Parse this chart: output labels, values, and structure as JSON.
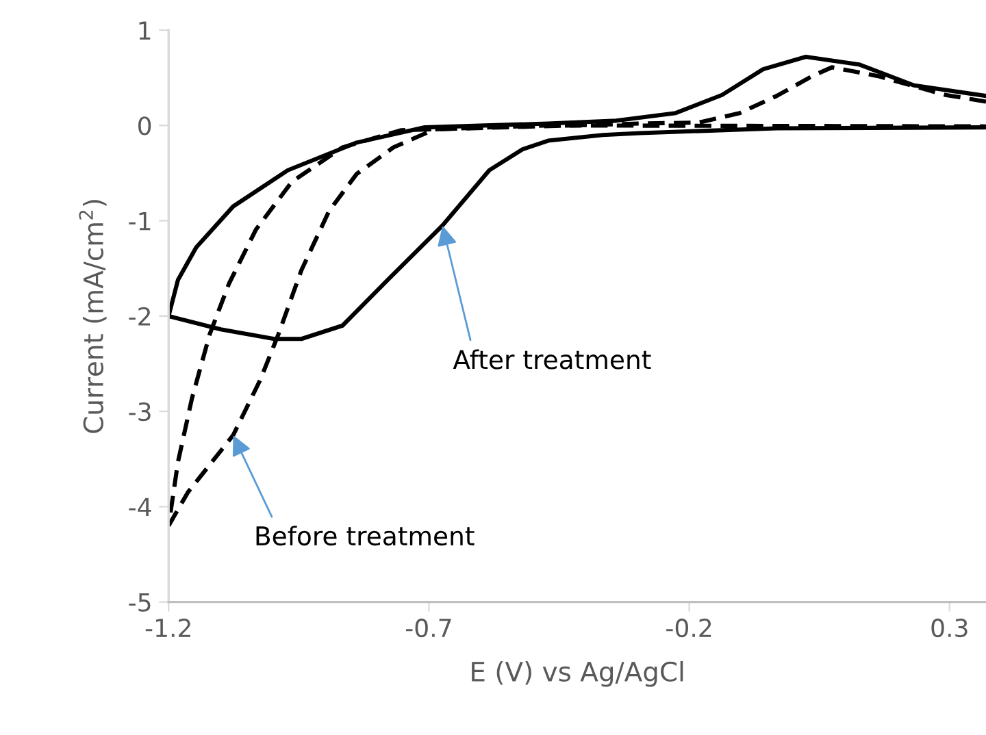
{
  "chart_data": {
    "type": "line",
    "xlabel": "E (V) vs Ag/AgCl",
    "ylabel": "Current (mA/cm$^{2}$)",
    "xlim": [
      -1.2,
      0.37
    ],
    "xticks": [
      -1.2,
      -0.7,
      -0.2,
      0.3
    ],
    "ylim": [
      -5,
      1
    ],
    "yticks": [
      -5,
      -4,
      -3,
      -2,
      -1,
      0,
      1
    ],
    "grid": false,
    "legend": false,
    "marker": "none",
    "series": [
      {
        "color": "#000000",
        "line_style": "solid",
        "x": [
          -1.2,
          -1.1,
          -0.997,
          -0.945,
          -0.866,
          -0.779,
          -0.674,
          -0.584,
          -0.52,
          -0.471,
          -0.366,
          -0.295,
          -0.032,
          0.37
        ],
        "values": [
          -2.0,
          -2.14,
          -2.24,
          -2.24,
          -2.1,
          -1.62,
          -1.05,
          -0.47,
          -0.25,
          -0.16,
          -0.1,
          -0.08,
          -0.03,
          -0.02
        ]
      },
      {
        "color": "#000000",
        "line_style": "solid",
        "x": [
          0.37,
          0.232,
          0.126,
          0.024,
          -0.058,
          -0.137,
          -0.226,
          -0.34,
          -0.471,
          -0.708,
          -0.839,
          -0.971,
          -1.076,
          -1.147,
          -1.182,
          -1.2
        ],
        "values": [
          0.31,
          0.42,
          0.64,
          0.72,
          0.59,
          0.32,
          0.13,
          0.05,
          0.02,
          -0.02,
          -0.18,
          -0.47,
          -0.85,
          -1.28,
          -1.62,
          -2.0
        ]
      },
      {
        "color": "#000000",
        "line_style": "dashed",
        "x": [
          -1.2,
          -1.163,
          -1.076,
          -1.024,
          -0.989,
          -0.945,
          -0.892,
          -0.839,
          -0.768,
          -0.689,
          -0.471,
          0.37
        ],
        "values": [
          -4.2,
          -3.85,
          -3.25,
          -2.67,
          -2.19,
          -1.52,
          -0.9,
          -0.51,
          -0.23,
          -0.04,
          0.0,
          -0.01
        ]
      },
      {
        "color": "#000000",
        "line_style": "dashed",
        "x": [
          0.37,
          0.292,
          0.161,
          0.074,
          0.037,
          -0.032,
          -0.103,
          -0.182,
          -0.295,
          -0.753,
          -0.866,
          -0.963,
          -1.032,
          -1.084,
          -1.121,
          -1.155,
          -1.182,
          -1.2
        ],
        "values": [
          0.25,
          0.32,
          0.52,
          0.61,
          0.52,
          0.31,
          0.13,
          0.03,
          0.02,
          -0.05,
          -0.23,
          -0.59,
          -1.09,
          -1.66,
          -2.19,
          -2.86,
          -3.53,
          -4.2
        ]
      }
    ],
    "annotations": [
      {
        "text": "After treatment",
        "x": -0.674,
        "y": -1.05
      },
      {
        "text": "Before treatment",
        "x": -1.076,
        "y": -3.25
      }
    ]
  }
}
